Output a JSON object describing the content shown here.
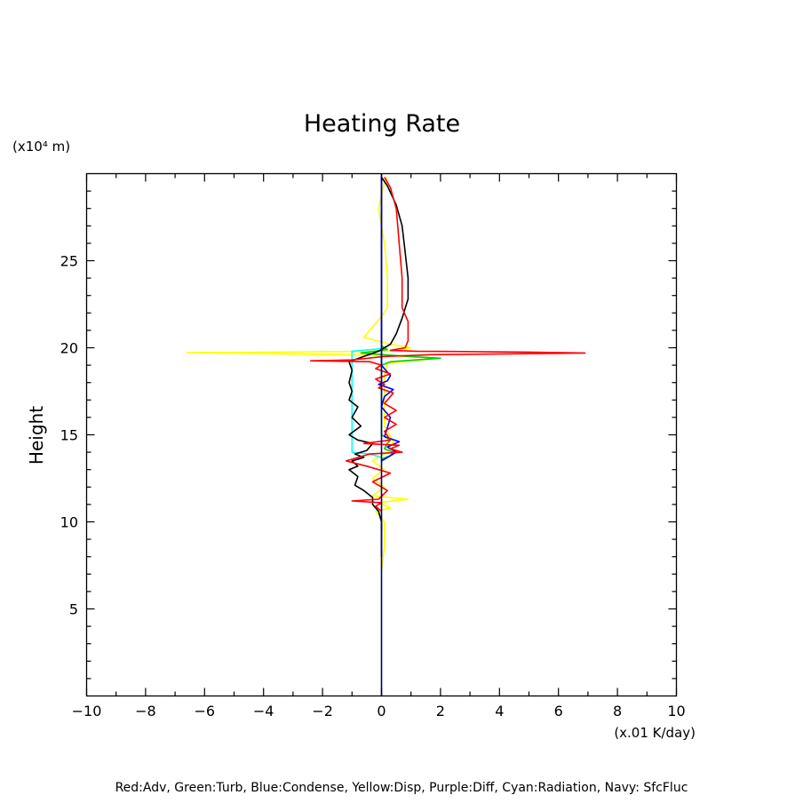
{
  "chart_data": {
    "type": "line",
    "title": "Heating Rate",
    "ylabel": "Height",
    "y_unit": "(x10⁴ m)",
    "x_unit": "(x.01 K/day)",
    "xlim": [
      -10,
      10
    ],
    "ylim": [
      0,
      30
    ],
    "x_ticks": [
      -10,
      -8,
      -6,
      -4,
      -2,
      0,
      2,
      4,
      6,
      8,
      10
    ],
    "x_tick_labels": [
      "−10",
      "−8",
      "−6",
      "−4",
      "−2",
      "0",
      "2",
      "4",
      "6",
      "8",
      "10"
    ],
    "y_ticks": [
      5,
      10,
      15,
      20,
      25
    ],
    "y_tick_labels": [
      "5",
      "10",
      "15",
      "20",
      "25"
    ],
    "grid": false,
    "footnote": "Red:Adv, Green:Turb, Blue:Condense, Yellow:Disp, Purple:Diff, Cyan:Radiation, Navy: SfcFluc",
    "series": [
      {
        "color": "#ffff00",
        "points": [
          [
            0,
            7.2
          ],
          [
            0.1,
            8.5
          ],
          [
            0.1,
            10
          ],
          [
            -0.2,
            10.6
          ],
          [
            0.3,
            10.8
          ],
          [
            -0.1,
            11.1
          ],
          [
            0.9,
            11.3
          ],
          [
            -0.3,
            11.5
          ],
          [
            0.1,
            12
          ],
          [
            -0.3,
            12.5
          ],
          [
            0.1,
            13
          ],
          [
            -0.3,
            13.5
          ],
          [
            0.2,
            14
          ],
          [
            0.4,
            14.6
          ],
          [
            0.1,
            15.5
          ],
          [
            0.1,
            17
          ],
          [
            0.1,
            18.5
          ],
          [
            0.2,
            19.1
          ],
          [
            1.9,
            19.4
          ],
          [
            0.3,
            19.55
          ],
          [
            -3.0,
            19.65
          ],
          [
            -6.6,
            19.72
          ],
          [
            -3.5,
            19.75
          ],
          [
            0.2,
            19.8
          ],
          [
            0.5,
            19.85
          ],
          [
            1.0,
            20.0
          ],
          [
            0.3,
            20.2
          ],
          [
            -0.6,
            20.6
          ],
          [
            -0.3,
            21.2
          ],
          [
            0.0,
            21.8
          ],
          [
            0.2,
            22.3
          ],
          [
            0.2,
            24
          ],
          [
            0.1,
            26
          ],
          [
            -0.1,
            28
          ],
          [
            0.1,
            29.5
          ],
          [
            0.2,
            29.8
          ]
        ]
      },
      {
        "color": "#00d000",
        "points": [
          [
            0,
            13.6
          ],
          [
            0.3,
            13.8
          ],
          [
            0.4,
            14.0
          ],
          [
            0.1,
            14.2
          ],
          [
            0.2,
            14.5
          ],
          [
            0.3,
            14.7
          ],
          [
            0.0,
            15
          ],
          [
            0.0,
            19
          ],
          [
            0.3,
            19.2
          ],
          [
            2.0,
            19.4
          ],
          [
            0.9,
            19.5
          ],
          [
            -0.7,
            19.7
          ],
          [
            0.2,
            19.9
          ],
          [
            0.0,
            20.1
          ]
        ]
      },
      {
        "color": "#00ffff",
        "points": [
          [
            0,
            13.7
          ],
          [
            -0.4,
            13.9
          ],
          [
            -1.0,
            14.0
          ],
          [
            -1.0,
            19.8
          ],
          [
            0.0,
            19.95
          ],
          [
            0.0,
            20.05
          ]
        ]
      },
      {
        "color": "#0000ff",
        "points": [
          [
            0,
            13.5
          ],
          [
            0.5,
            14.0
          ],
          [
            0.2,
            14.3
          ],
          [
            0.6,
            14.6
          ],
          [
            0.1,
            14.9
          ],
          [
            0.2,
            15.4
          ],
          [
            0.3,
            16.0
          ],
          [
            0.0,
            16.6
          ],
          [
            0.1,
            17.2
          ],
          [
            0.4,
            17.6
          ],
          [
            -0.1,
            17.9
          ],
          [
            0.2,
            18.1
          ],
          [
            0.3,
            18.4
          ],
          [
            0.1,
            18.8
          ],
          [
            0.0,
            19.0
          ],
          [
            0.0,
            29.8
          ]
        ]
      },
      {
        "color": "#800080",
        "points": [
          [
            0,
            9.5
          ],
          [
            0,
            9.9
          ]
        ]
      },
      {
        "color": "#000000",
        "points": [
          [
            0,
            8.0
          ],
          [
            0.0,
            10.0
          ],
          [
            -0.1,
            10.6
          ],
          [
            -0.3,
            11.0
          ],
          [
            -0.3,
            11.4
          ],
          [
            -0.6,
            11.8
          ],
          [
            -0.9,
            12.1
          ],
          [
            -0.8,
            12.6
          ],
          [
            -1.1,
            13.0
          ],
          [
            -0.8,
            13.2
          ],
          [
            -1.0,
            13.5
          ],
          [
            -0.6,
            13.7
          ],
          [
            -0.9,
            13.9
          ],
          [
            -0.5,
            14.1
          ],
          [
            -0.3,
            14.5
          ],
          [
            -0.8,
            14.7
          ],
          [
            -1.1,
            15.0
          ],
          [
            -0.7,
            15.5
          ],
          [
            -1.0,
            16.0
          ],
          [
            -0.8,
            16.6
          ],
          [
            -1.1,
            17.0
          ],
          [
            -1.0,
            17.5
          ],
          [
            -1.1,
            18.0
          ],
          [
            -1.0,
            18.7
          ],
          [
            -1.1,
            19.2
          ],
          [
            -0.6,
            19.5
          ],
          [
            -0.1,
            19.8
          ],
          [
            0.1,
            20.0
          ],
          [
            0.3,
            20.2
          ],
          [
            0.5,
            20.8
          ],
          [
            0.7,
            21.7
          ],
          [
            0.9,
            22.8
          ],
          [
            0.9,
            24.0
          ],
          [
            0.8,
            25.5
          ],
          [
            0.7,
            27.0
          ],
          [
            0.5,
            28.2
          ],
          [
            0.2,
            29.3
          ],
          [
            0.0,
            29.8
          ]
        ]
      },
      {
        "color": "#ff0000",
        "points": [
          [
            0,
            10.6
          ],
          [
            -0.2,
            10.9
          ],
          [
            0.0,
            11.1
          ],
          [
            -1.0,
            11.2
          ],
          [
            -0.1,
            11.3
          ],
          [
            0.2,
            11.8
          ],
          [
            -0.3,
            12.3
          ],
          [
            0.3,
            12.8
          ],
          [
            -0.5,
            13.2
          ],
          [
            -1.2,
            13.5
          ],
          [
            -0.4,
            13.9
          ],
          [
            0.7,
            14.0
          ],
          [
            0.3,
            14.2
          ],
          [
            0.6,
            14.4
          ],
          [
            -0.6,
            14.5
          ],
          [
            0.3,
            14.7
          ],
          [
            0.1,
            15.2
          ],
          [
            0.5,
            15.6
          ],
          [
            0.1,
            16.0
          ],
          [
            0.5,
            16.4
          ],
          [
            0.1,
            16.8
          ],
          [
            0.4,
            17.4
          ],
          [
            -0.1,
            17.7
          ],
          [
            0.1,
            17.9
          ],
          [
            -0.2,
            18.2
          ],
          [
            0.3,
            18.5
          ],
          [
            -0.2,
            18.8
          ],
          [
            0.0,
            19.0
          ],
          [
            -0.4,
            19.2
          ],
          [
            -2.4,
            19.25
          ],
          [
            -1.0,
            19.3
          ],
          [
            0.1,
            19.5
          ],
          [
            1.7,
            19.6
          ],
          [
            6.9,
            19.7
          ],
          [
            5.0,
            19.75
          ],
          [
            1.2,
            19.8
          ],
          [
            0.3,
            19.85
          ],
          [
            0.8,
            20.0
          ],
          [
            0.9,
            20.4
          ],
          [
            0.9,
            21.5
          ],
          [
            0.7,
            22.3
          ],
          [
            0.7,
            24.0
          ],
          [
            0.6,
            26.0
          ],
          [
            0.5,
            28.0
          ],
          [
            0.3,
            29.2
          ],
          [
            0.1,
            29.8
          ]
        ]
      },
      {
        "color": "#000080",
        "points": [
          [
            0,
            0
          ],
          [
            0,
            30
          ]
        ]
      }
    ]
  }
}
